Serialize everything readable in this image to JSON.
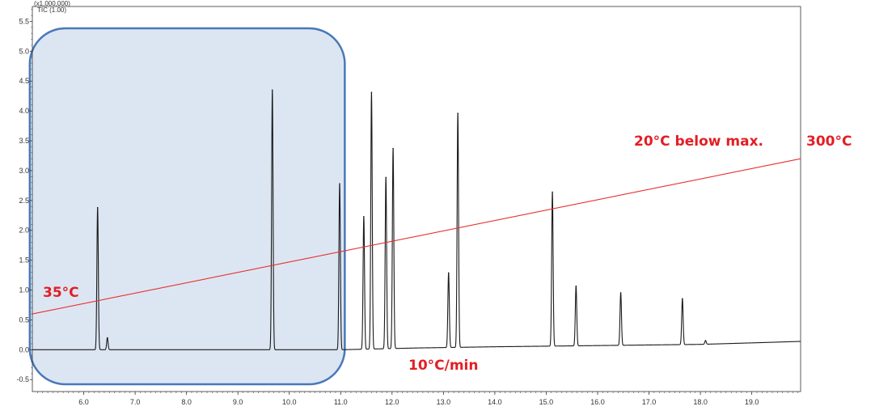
{
  "chart_data": {
    "type": "line",
    "y_multiplier_label": "(x1,000,000)",
    "detector_label": "TIC (1.00)",
    "xlim": [
      5.0,
      19.95
    ],
    "ylim": [
      -0.7,
      5.75
    ],
    "x_ticks": [
      6.0,
      7.0,
      8.0,
      9.0,
      10.0,
      11.0,
      12.0,
      13.0,
      14.0,
      15.0,
      16.0,
      17.0,
      18.0,
      19.0
    ],
    "x_tick_labels": [
      "6.0",
      "7.0",
      "8.0",
      "9.0",
      "10.0",
      "11.0",
      "12.0",
      "13.0",
      "14.0",
      "15.0",
      "16.0",
      "17.0",
      "18.0",
      "19.0"
    ],
    "y_ticks": [
      -0.5,
      0.0,
      0.5,
      1.0,
      1.5,
      2.0,
      2.5,
      3.0,
      3.5,
      4.0,
      4.5,
      5.0,
      5.5
    ],
    "y_tick_labels": [
      "-0.5",
      "0.0",
      "0.5",
      "1.0",
      "1.5",
      "2.0",
      "2.5",
      "3.0",
      "3.5",
      "4.0",
      "4.5",
      "5.0",
      "5.5"
    ],
    "series": [
      {
        "color": "#1a1a1a",
        "baseline": [
          [
            5.0,
            0.0
          ],
          [
            11.0,
            0.0
          ],
          [
            12.5,
            0.03
          ],
          [
            14.0,
            0.05
          ],
          [
            16.0,
            0.07
          ],
          [
            18.0,
            0.09
          ],
          [
            19.2,
            0.12
          ],
          [
            19.95,
            0.14
          ]
        ],
        "peaks": [
          {
            "rt": 6.27,
            "height": 2.38
          },
          {
            "rt": 6.46,
            "height": 0.2
          },
          {
            "rt": 9.67,
            "height": 4.35
          },
          {
            "rt": 10.98,
            "height": 2.78
          },
          {
            "rt": 11.45,
            "height": 2.22
          },
          {
            "rt": 11.6,
            "height": 4.3
          },
          {
            "rt": 11.88,
            "height": 2.87
          },
          {
            "rt": 12.02,
            "height": 3.35
          },
          {
            "rt": 13.1,
            "height": 1.25
          },
          {
            "rt": 13.28,
            "height": 3.92
          },
          {
            "rt": 15.12,
            "height": 2.58
          },
          {
            "rt": 15.58,
            "height": 1.0
          },
          {
            "rt": 16.45,
            "height": 0.88
          },
          {
            "rt": 17.65,
            "height": 0.77
          },
          {
            "rt": 18.1,
            "height": 0.06
          }
        ]
      }
    ],
    "temperature_line": {
      "color": "#e8302f",
      "start": [
        5.0,
        0.6
      ],
      "end": [
        19.95,
        3.2
      ]
    },
    "highlight_region": {
      "x_range": [
        4.95,
        11.08
      ],
      "fill": "#dce6f2",
      "stroke": "#4a78b8"
    },
    "annotations": {
      "start_temp": "35°C",
      "ramp": "10°C/min",
      "near_max": "20°C below max.",
      "max_temp": "300°C"
    },
    "annotation_color": "#e31e24",
    "grid": false,
    "title": "",
    "xlabel": "",
    "ylabel": ""
  }
}
